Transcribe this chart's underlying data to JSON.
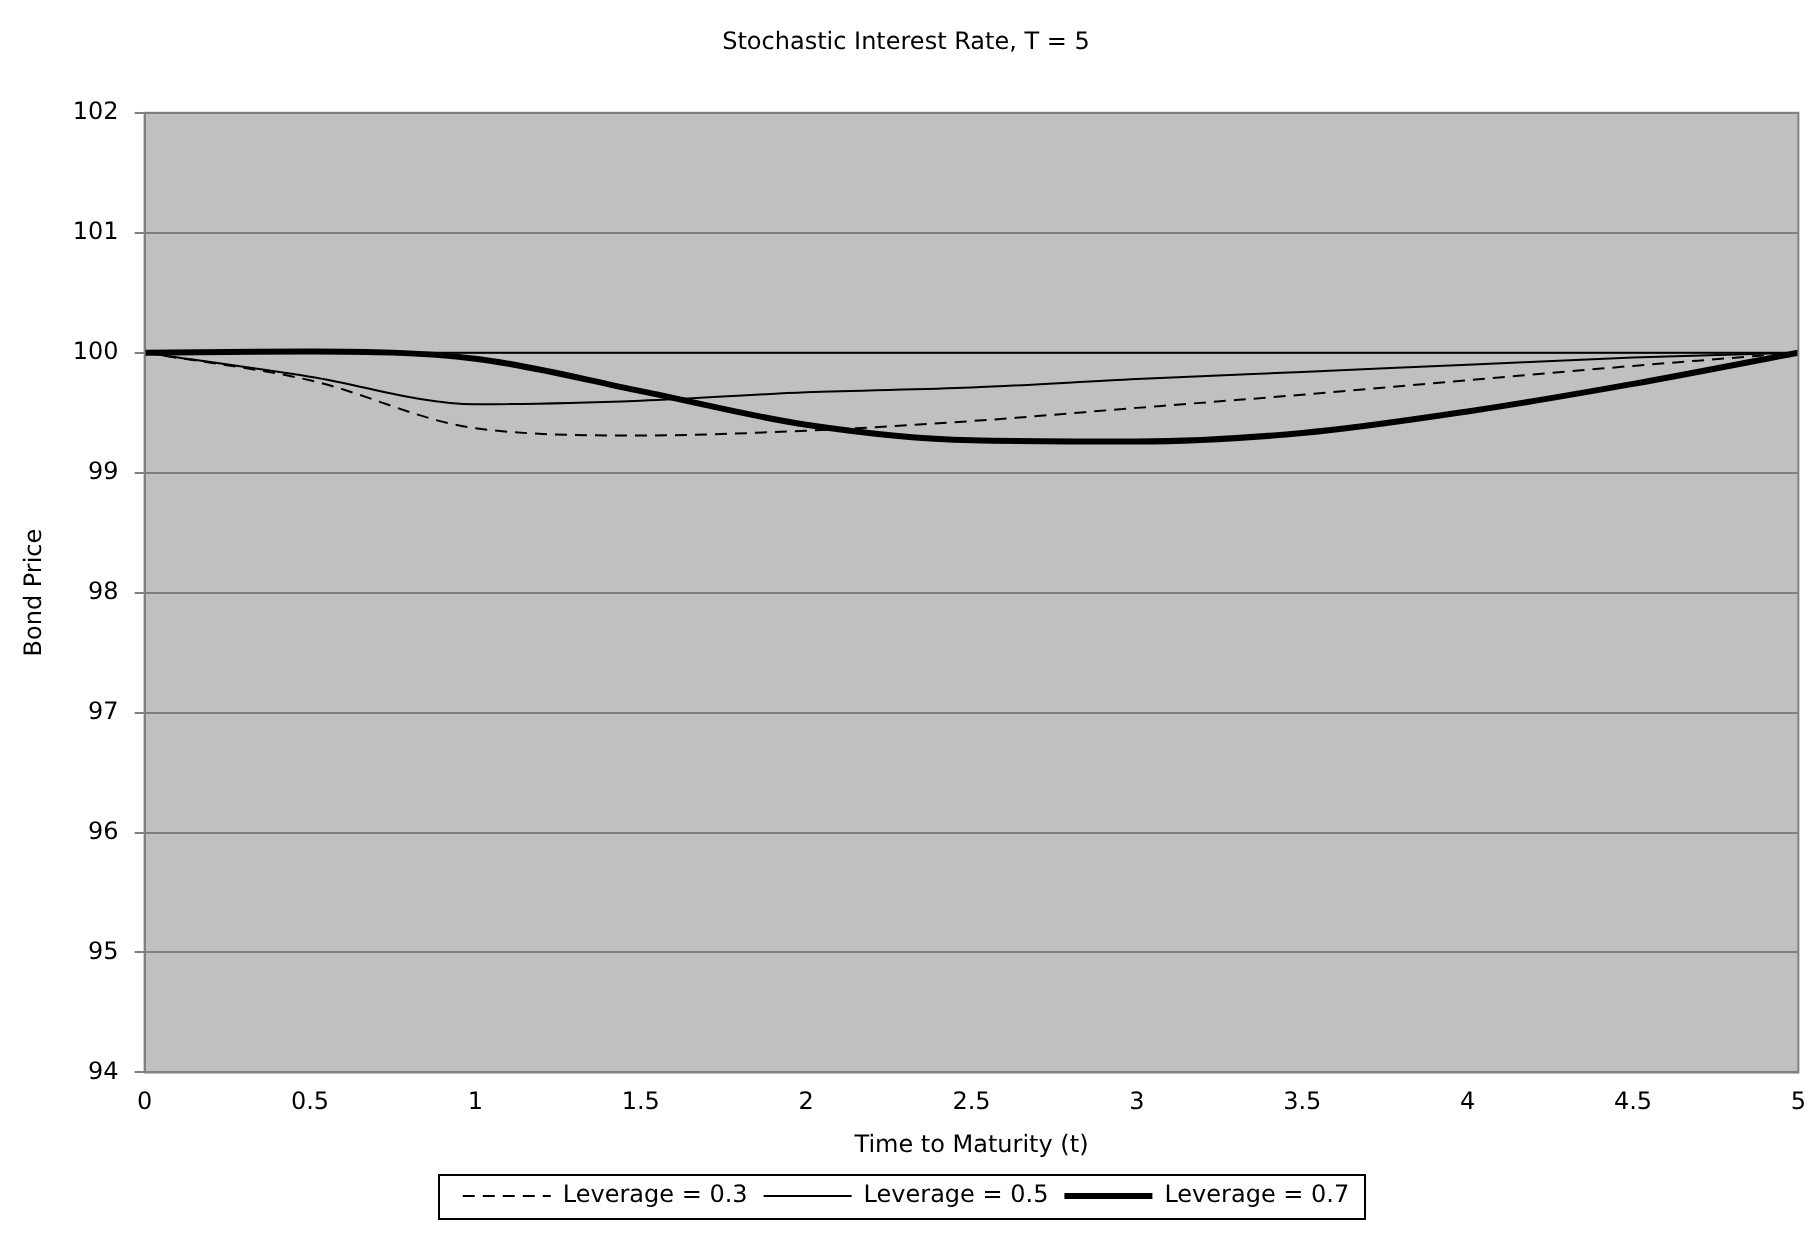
{
  "chart_data": {
    "type": "line",
    "title": "Stochastic Interest Rate, T = 5",
    "xlabel": "Time to Maturity (t)",
    "ylabel": "Bond Price",
    "x": [
      0,
      0.5,
      1,
      1.5,
      2,
      2.5,
      3,
      3.5,
      4,
      4.5,
      5
    ],
    "series": [
      {
        "name": "Leverage = 0.3",
        "color": "#000000",
        "line_style": "dashed",
        "values": [
          100,
          99.77,
          99.37,
          99.31,
          99.35,
          99.43,
          99.54,
          99.65,
          99.77,
          99.89,
          100
        ]
      },
      {
        "name": "Leverage = 0.5",
        "color": "#000000",
        "line_style": "solid",
        "values": [
          100,
          99.8,
          99.57,
          99.6,
          99.67,
          99.71,
          99.78,
          99.84,
          99.9,
          99.96,
          100
        ]
      },
      {
        "name": "Leverage = 0.7",
        "color": "#000000",
        "line_style": "solid",
        "values": [
          100,
          100.01,
          99.95,
          99.68,
          99.4,
          99.27,
          99.26,
          99.33,
          99.51,
          99.74,
          100
        ]
      }
    ],
    "xlim": [
      0,
      5
    ],
    "xticks": [
      0,
      0.5,
      1,
      1.5,
      2,
      2.5,
      3,
      3.5,
      4,
      4.5,
      5
    ],
    "ylim": [
      94,
      102
    ],
    "yticks": [
      94,
      95,
      96,
      97,
      98,
      99,
      100,
      101,
      102
    ],
    "ref_lines": [
      {
        "axis": "y",
        "value": 100,
        "color": "#000000"
      }
    ],
    "grid": "y",
    "legend": "bottom",
    "marker": "none"
  }
}
